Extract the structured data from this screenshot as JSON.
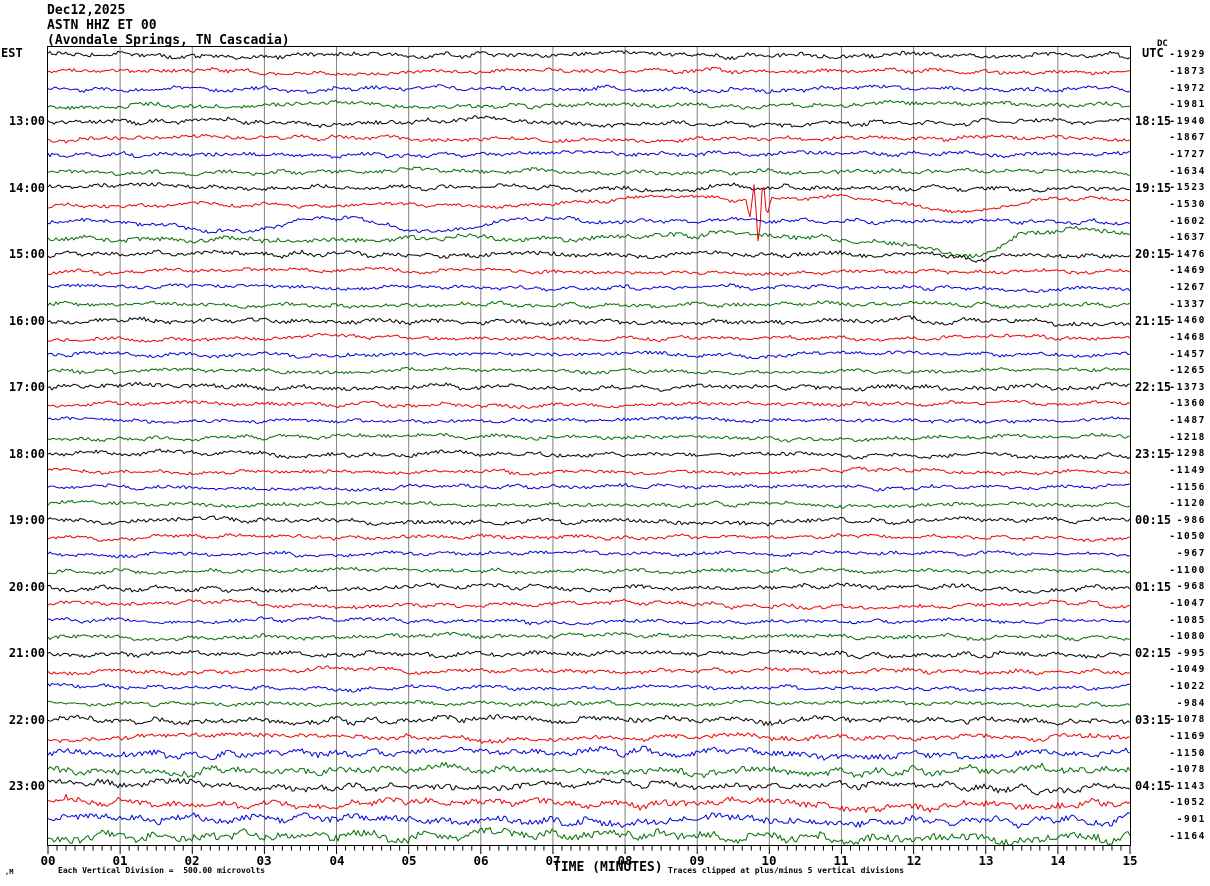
{
  "header": {
    "date": "Dec12,2025",
    "station": "ASTN HHZ ET 00",
    "location": "(Avondale Springs, TN Cascadia)"
  },
  "axes": {
    "left_header": "EST",
    "right_header": "UTC",
    "dc_header": "DC",
    "xlabel": "TIME (MINUTES)",
    "x_tick_labels": [
      "00",
      "01",
      "02",
      "03",
      "04",
      "05",
      "06",
      "07",
      "08",
      "09",
      "10",
      "11",
      "12",
      "13",
      "14",
      "15"
    ]
  },
  "footer": {
    "watermark": ",M",
    "scale_note": "Each Vertical Division =  500.00 microvolts",
    "clip_note": "Traces clipped at plus/minus 5 vertical divisions"
  },
  "colors": {
    "black": "#000000",
    "red": "#ee0000",
    "blue": "#0000dd",
    "green": "#006f00",
    "grid": "#808080",
    "axis": "#000000"
  },
  "chart_data": {
    "type": "line",
    "subtype": "seismogram-helicorder",
    "title": "Dec12,2025 ASTN HHZ ET 00 (Avondale Springs, TN Cascadia)",
    "xlabel": "TIME (MINUTES)",
    "x_range_minutes": [
      0,
      15
    ],
    "minutes_per_line": 15,
    "minor_ticks_per_minute": 8,
    "lines_per_hour": 4,
    "vertical_division_microvolts": 500.0,
    "clip_divisions": 5,
    "grid": "vertical-minute-lines",
    "legend_position": "none",
    "left_axis_times_est": [
      "13:00",
      "14:00",
      "15:00",
      "16:00",
      "17:00",
      "18:00",
      "19:00",
      "20:00",
      "21:00",
      "22:00",
      "23:00"
    ],
    "right_axis_times_utc": [
      "18:15",
      "19:15",
      "20:15",
      "21:15",
      "22:15",
      "23:15",
      "00:15",
      "01:15",
      "02:15",
      "03:15",
      "04:15"
    ],
    "rows": [
      {
        "color": "black",
        "est": "",
        "utc": "",
        "dc": -1929,
        "amp": 2.2,
        "slow": 1.6
      },
      {
        "color": "red",
        "est": "",
        "utc": "",
        "dc": -1873,
        "amp": 1.9,
        "slow": 1.8
      },
      {
        "color": "blue",
        "est": "",
        "utc": "",
        "dc": -1972,
        "amp": 2.1,
        "slow": 1.6
      },
      {
        "color": "green",
        "est": "",
        "utc": "",
        "dc": -1981,
        "amp": 2.1,
        "slow": 2.0
      },
      {
        "color": "black",
        "est": "13:00",
        "utc": "18:15",
        "dc": -1940,
        "amp": 2.2,
        "slow": 2.4
      },
      {
        "color": "red",
        "est": "",
        "utc": "",
        "dc": -1867,
        "amp": 1.9,
        "slow": 1.8
      },
      {
        "color": "blue",
        "est": "",
        "utc": "",
        "dc": -1727,
        "amp": 2.1,
        "slow": 2.2
      },
      {
        "color": "green",
        "est": "",
        "utc": "",
        "dc": -1634,
        "amp": 2.0,
        "slow": 2.2
      },
      {
        "color": "black",
        "est": "14:00",
        "utc": "19:15",
        "dc": -1523,
        "amp": 2.2,
        "slow": 2.4
      },
      {
        "color": "red",
        "est": "",
        "utc": "",
        "dc": -1530,
        "amp": 1.8,
        "slow": 1.2,
        "events": [
          {
            "t": 8.6,
            "a": 9,
            "w": 1.1
          },
          {
            "t": 9.85,
            "a": -44,
            "w": 0.13,
            "osc": true
          },
          {
            "t": 10.8,
            "a": 8,
            "w": 1.1
          },
          {
            "t": 12.6,
            "a": -9,
            "w": 0.6
          },
          {
            "t": 14.3,
            "a": 7,
            "w": 0.9
          }
        ]
      },
      {
        "color": "blue",
        "est": "",
        "utc": "",
        "dc": -1602,
        "amp": 2.0,
        "slow": 1.2,
        "events": [
          {
            "t": 2.6,
            "a": -9,
            "w": 0.9
          },
          {
            "t": 4.0,
            "a": 6,
            "w": 0.9
          },
          {
            "t": 5.3,
            "a": -12,
            "w": 0.8
          },
          {
            "t": 6.6,
            "a": 4,
            "w": 0.7
          }
        ]
      },
      {
        "color": "green",
        "est": "",
        "utc": "",
        "dc": -1637,
        "amp": 2.4,
        "slow": 1.5,
        "events": [
          {
            "t": 9.6,
            "a": 5,
            "w": 1.4
          },
          {
            "t": 11.9,
            "a": -7,
            "w": 0.7
          },
          {
            "t": 12.85,
            "a": -20,
            "w": 0.5
          },
          {
            "t": 14.1,
            "a": 8,
            "w": 0.9
          }
        ]
      },
      {
        "color": "black",
        "est": "15:00",
        "utc": "20:15",
        "dc": -1476,
        "amp": 2.2,
        "slow": 1.8,
        "events": [
          {
            "t": 12.9,
            "a": -7,
            "w": 0.25
          }
        ]
      },
      {
        "color": "red",
        "est": "",
        "utc": "",
        "dc": -1469,
        "amp": 1.8,
        "slow": 1.6
      },
      {
        "color": "blue",
        "est": "",
        "utc": "",
        "dc": -1267,
        "amp": 1.9,
        "slow": 1.6
      },
      {
        "color": "green",
        "est": "",
        "utc": "",
        "dc": -1337,
        "amp": 1.9,
        "slow": 1.6
      },
      {
        "color": "black",
        "est": "16:00",
        "utc": "21:15",
        "dc": -1460,
        "amp": 2.2,
        "slow": 1.8
      },
      {
        "color": "red",
        "est": "",
        "utc": "",
        "dc": -1468,
        "amp": 1.8,
        "slow": 1.5
      },
      {
        "color": "blue",
        "est": "",
        "utc": "",
        "dc": -1457,
        "amp": 1.8,
        "slow": 1.5
      },
      {
        "color": "green",
        "est": "",
        "utc": "",
        "dc": -1265,
        "amp": 1.8,
        "slow": 1.5
      },
      {
        "color": "black",
        "est": "17:00",
        "utc": "22:15",
        "dc": -1373,
        "amp": 2.2,
        "slow": 1.8
      },
      {
        "color": "red",
        "est": "",
        "utc": "",
        "dc": -1360,
        "amp": 1.8,
        "slow": 1.5
      },
      {
        "color": "blue",
        "est": "",
        "utc": "",
        "dc": -1487,
        "amp": 1.8,
        "slow": 1.5
      },
      {
        "color": "green",
        "est": "",
        "utc": "",
        "dc": -1218,
        "amp": 1.8,
        "slow": 1.5
      },
      {
        "color": "black",
        "est": "18:00",
        "utc": "23:15",
        "dc": -1298,
        "amp": 2.0,
        "slow": 1.8
      },
      {
        "color": "red",
        "est": "",
        "utc": "",
        "dc": -1149,
        "amp": 1.8,
        "slow": 1.5
      },
      {
        "color": "blue",
        "est": "",
        "utc": "",
        "dc": -1156,
        "amp": 1.8,
        "slow": 1.5
      },
      {
        "color": "green",
        "est": "",
        "utc": "",
        "dc": -1120,
        "amp": 1.8,
        "slow": 1.5
      },
      {
        "color": "black",
        "est": "19:00",
        "utc": "00:15",
        "dc": -986,
        "amp": 2.2,
        "slow": 1.9
      },
      {
        "color": "red",
        "est": "",
        "utc": "",
        "dc": -1050,
        "amp": 1.8,
        "slow": 1.5
      },
      {
        "color": "blue",
        "est": "",
        "utc": "",
        "dc": -967,
        "amp": 1.8,
        "slow": 1.5
      },
      {
        "color": "green",
        "est": "",
        "utc": "",
        "dc": -1100,
        "amp": 1.8,
        "slow": 1.6
      },
      {
        "color": "black",
        "est": "20:00",
        "utc": "01:15",
        "dc": -968,
        "amp": 2.2,
        "slow": 1.9
      },
      {
        "color": "red",
        "est": "",
        "utc": "",
        "dc": -1047,
        "amp": 2.0,
        "slow": 2.8
      },
      {
        "color": "blue",
        "est": "",
        "utc": "",
        "dc": -1085,
        "amp": 1.8,
        "slow": 1.6
      },
      {
        "color": "green",
        "est": "",
        "utc": "",
        "dc": -1080,
        "amp": 2.0,
        "slow": 2.0
      },
      {
        "color": "black",
        "est": "21:00",
        "utc": "02:15",
        "dc": -995,
        "amp": 2.2,
        "slow": 2.0
      },
      {
        "color": "red",
        "est": "",
        "utc": "",
        "dc": -1049,
        "amp": 2.0,
        "slow": 1.9
      },
      {
        "color": "blue",
        "est": "",
        "utc": "",
        "dc": -1022,
        "amp": 1.8,
        "slow": 1.6
      },
      {
        "color": "green",
        "est": "",
        "utc": "",
        "dc": -984,
        "amp": 1.9,
        "slow": 1.6
      },
      {
        "color": "black",
        "est": "22:00",
        "utc": "03:15",
        "dc": -1078,
        "amp": 2.7,
        "slow": 2.0
      },
      {
        "color": "red",
        "est": "",
        "utc": "",
        "dc": -1169,
        "amp": 2.4,
        "slow": 2.0
      },
      {
        "color": "blue",
        "est": "",
        "utc": "",
        "dc": -1150,
        "amp": 3.1,
        "slow": 2.4
      },
      {
        "color": "green",
        "est": "",
        "utc": "",
        "dc": -1078,
        "amp": 3.6,
        "slow": 2.4
      },
      {
        "color": "black",
        "est": "23:00",
        "utc": "04:15",
        "dc": -1143,
        "amp": 3.1,
        "slow": 3.4
      },
      {
        "color": "red",
        "est": "",
        "utc": "",
        "dc": -1052,
        "amp": 3.4,
        "slow": 4.4
      },
      {
        "color": "blue",
        "est": "",
        "utc": "",
        "dc": -901,
        "amp": 3.6,
        "slow": 3.4
      },
      {
        "color": "green",
        "est": "",
        "utc": "",
        "dc": -1164,
        "amp": 4.1,
        "slow": 3.4
      }
    ]
  }
}
